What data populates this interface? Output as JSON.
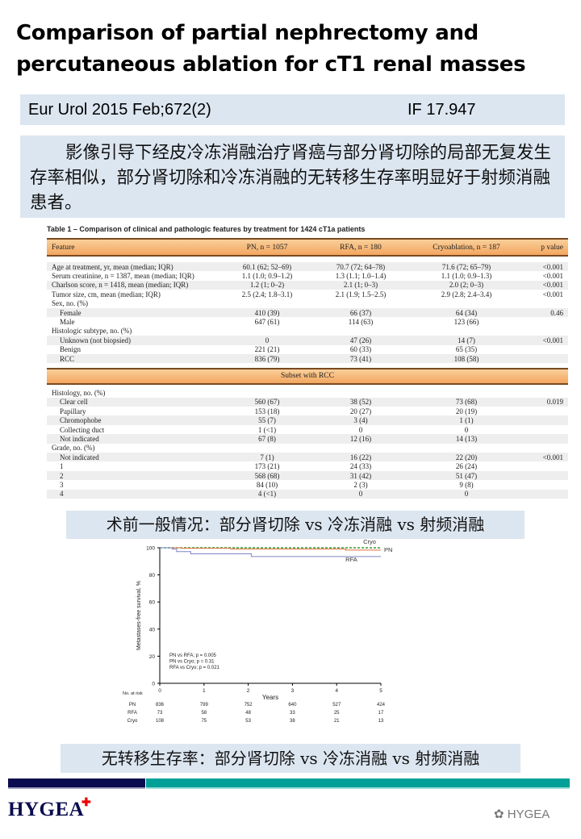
{
  "title": {
    "line1": "Comparison of partial nephrectomy and",
    "line2": "percutaneous ablation for cT1 renal masses"
  },
  "journal": {
    "citation": "Eur Urol 2015 Feb;672(2)",
    "impact_factor": "IF 17.947"
  },
  "summary": "影像引导下经皮冷冻消融治疗肾癌与部分肾切除的局部无复发生存率相似，部分肾切除和冷冻消融的无转移生存率明显好于射频消融患者。",
  "table": {
    "caption": "Table 1 – Comparison of clinical and pathologic features by treatment for 1424 cT1a patients",
    "headers": [
      "Feature",
      "PN, n = 1057",
      "RFA, n = 180",
      "Cryoablation, n = 187",
      "p value"
    ],
    "rows": [
      {
        "cells": [
          "Age at treatment, yr, mean (median; IQR)",
          "60.1 (62; 52–69)",
          "70.7 (72; 64–78)",
          "71.6 (72; 65–79)",
          "<0.001"
        ],
        "shade": true
      },
      {
        "cells": [
          "Serum creatinine, n = 1387, mean (median; IQR)",
          "1.1 (1.0; 0.9–1.2)",
          "1.3 (1.1; 1.0–1.4)",
          "1.1 (1.0; 0.9–1.3)",
          "<0.001"
        ],
        "shade": false
      },
      {
        "cells": [
          "Charlson score, n = 1418, mean (median; IQR)",
          "1.2 (1; 0–2)",
          "2.1 (1; 0–3)",
          "2.0 (2; 0–3)",
          "<0.001"
        ],
        "shade": true
      },
      {
        "cells": [
          "Tumor size, cm, mean (median; IQR)",
          "2.5 (2.4; 1.8–3.1)",
          "2.1 (1.9; 1.5–2.5)",
          "2.9 (2.8; 2.4–3.4)",
          "<0.001"
        ],
        "shade": false
      },
      {
        "cells": [
          "Sex, no. (%)",
          "",
          "",
          "",
          ""
        ],
        "shade": false
      },
      {
        "cells": [
          "Female",
          "410 (39)",
          "66 (37)",
          "64 (34)",
          "0.46"
        ],
        "shade": true,
        "indent": true
      },
      {
        "cells": [
          "Male",
          "647 (61)",
          "114 (63)",
          "123 (66)",
          ""
        ],
        "shade": false,
        "indent": true
      },
      {
        "cells": [
          "Histologic subtype, no. (%)",
          "",
          "",
          "",
          ""
        ],
        "shade": false
      },
      {
        "cells": [
          "Unknown (not biopsied)",
          "0",
          "47 (26)",
          "14 (7)",
          "<0.001"
        ],
        "shade": true,
        "indent": true
      },
      {
        "cells": [
          "Benign",
          "221 (21)",
          "60 (33)",
          "65 (35)",
          ""
        ],
        "shade": false,
        "indent": true
      },
      {
        "cells": [
          "RCC",
          "836 (79)",
          "73 (41)",
          "108 (58)",
          ""
        ],
        "shade": true,
        "indent": true
      }
    ],
    "subset_header": "Subset with RCC",
    "subset_rows": [
      {
        "cells": [
          "Histology, no. (%)",
          "",
          "",
          "",
          ""
        ],
        "shade": false
      },
      {
        "cells": [
          "Clear cell",
          "560 (67)",
          "38 (52)",
          "73 (68)",
          "0.019"
        ],
        "shade": true,
        "indent": true
      },
      {
        "cells": [
          "Papillary",
          "153 (18)",
          "20 (27)",
          "20 (19)",
          ""
        ],
        "shade": false,
        "indent": true
      },
      {
        "cells": [
          "Chromophobe",
          "55 (7)",
          "3 (4)",
          "1 (1)",
          ""
        ],
        "shade": true,
        "indent": true
      },
      {
        "cells": [
          "Collecting duct",
          "1 (<1)",
          "0",
          "0",
          ""
        ],
        "shade": false,
        "indent": true
      },
      {
        "cells": [
          "Not indicated",
          "67 (8)",
          "12 (16)",
          "14 (13)",
          ""
        ],
        "shade": true,
        "indent": true
      },
      {
        "cells": [
          "Grade, no. (%)",
          "",
          "",
          "",
          ""
        ],
        "shade": false
      },
      {
        "cells": [
          "Not indicated",
          "7 (1)",
          "16 (22)",
          "22 (20)",
          "<0.001"
        ],
        "shade": true,
        "indent": true
      },
      {
        "cells": [
          "1",
          "173 (21)",
          "24 (33)",
          "26 (24)",
          ""
        ],
        "shade": false,
        "indent": true
      },
      {
        "cells": [
          "2",
          "568 (68)",
          "31 (42)",
          "51 (47)",
          ""
        ],
        "shade": true,
        "indent": true
      },
      {
        "cells": [
          "3",
          "84 (10)",
          "2 (3)",
          "9 (8)",
          ""
        ],
        "shade": false,
        "indent": true
      },
      {
        "cells": [
          "4",
          "4 (<1)",
          "0",
          "0",
          ""
        ],
        "shade": true,
        "indent": true
      }
    ]
  },
  "caption1": "术前一般情况：部分肾切除 vs 冷冻消融 vs 射频消融",
  "caption2": "无转移生存率：部分肾切除 vs 冷冻消融 vs 射频消融",
  "chart_data": {
    "type": "line",
    "title": "",
    "xlabel": "Years",
    "ylabel": "Metastases-free survival, %",
    "xlim": [
      0,
      5
    ],
    "ylim": [
      0,
      100
    ],
    "xticks": [
      0,
      1,
      2,
      3,
      4,
      5
    ],
    "yticks": [
      0,
      20,
      40,
      60,
      80,
      100
    ],
    "grid": false,
    "step": true,
    "series": [
      {
        "name": "Cryo",
        "color": "#3a9a3a",
        "dashed": true,
        "points": [
          [
            0,
            100
          ],
          [
            5,
            100
          ]
        ]
      },
      {
        "name": "PN",
        "color": "#e0703a",
        "dashed": false,
        "points": [
          [
            0,
            100
          ],
          [
            0.5,
            99.6
          ],
          [
            1.6,
            99.1
          ],
          [
            4.2,
            98.3
          ],
          [
            5,
            98.3
          ]
        ]
      },
      {
        "name": "RFA",
        "color": "#7f86c8",
        "dashed": false,
        "points": [
          [
            0,
            100
          ],
          [
            0.28,
            99
          ],
          [
            0.38,
            97.2
          ],
          [
            0.7,
            95.5
          ],
          [
            2.07,
            93.5
          ],
          [
            5,
            93.5
          ]
        ]
      }
    ],
    "annotations": [
      "PN vs RFA; p = 0.005",
      "PN vs Cryo; p = 0.31",
      "RFA vs Cryo; p = 0.021"
    ],
    "risk_table": {
      "label": "No. at risk",
      "rows": [
        {
          "name": "PN",
          "values": [
            836,
            799,
            752,
            640,
            527,
            424
          ]
        },
        {
          "name": "RFA",
          "values": [
            73,
            58,
            48,
            33,
            25,
            17
          ]
        },
        {
          "name": "Cryo",
          "values": [
            108,
            75,
            53,
            38,
            21,
            13
          ]
        }
      ]
    }
  },
  "footer": {
    "logo": "HYGEA",
    "watermark": "HYGEA",
    "colors": {
      "navy": "#0b0b4f",
      "teal": "#00a098"
    }
  }
}
